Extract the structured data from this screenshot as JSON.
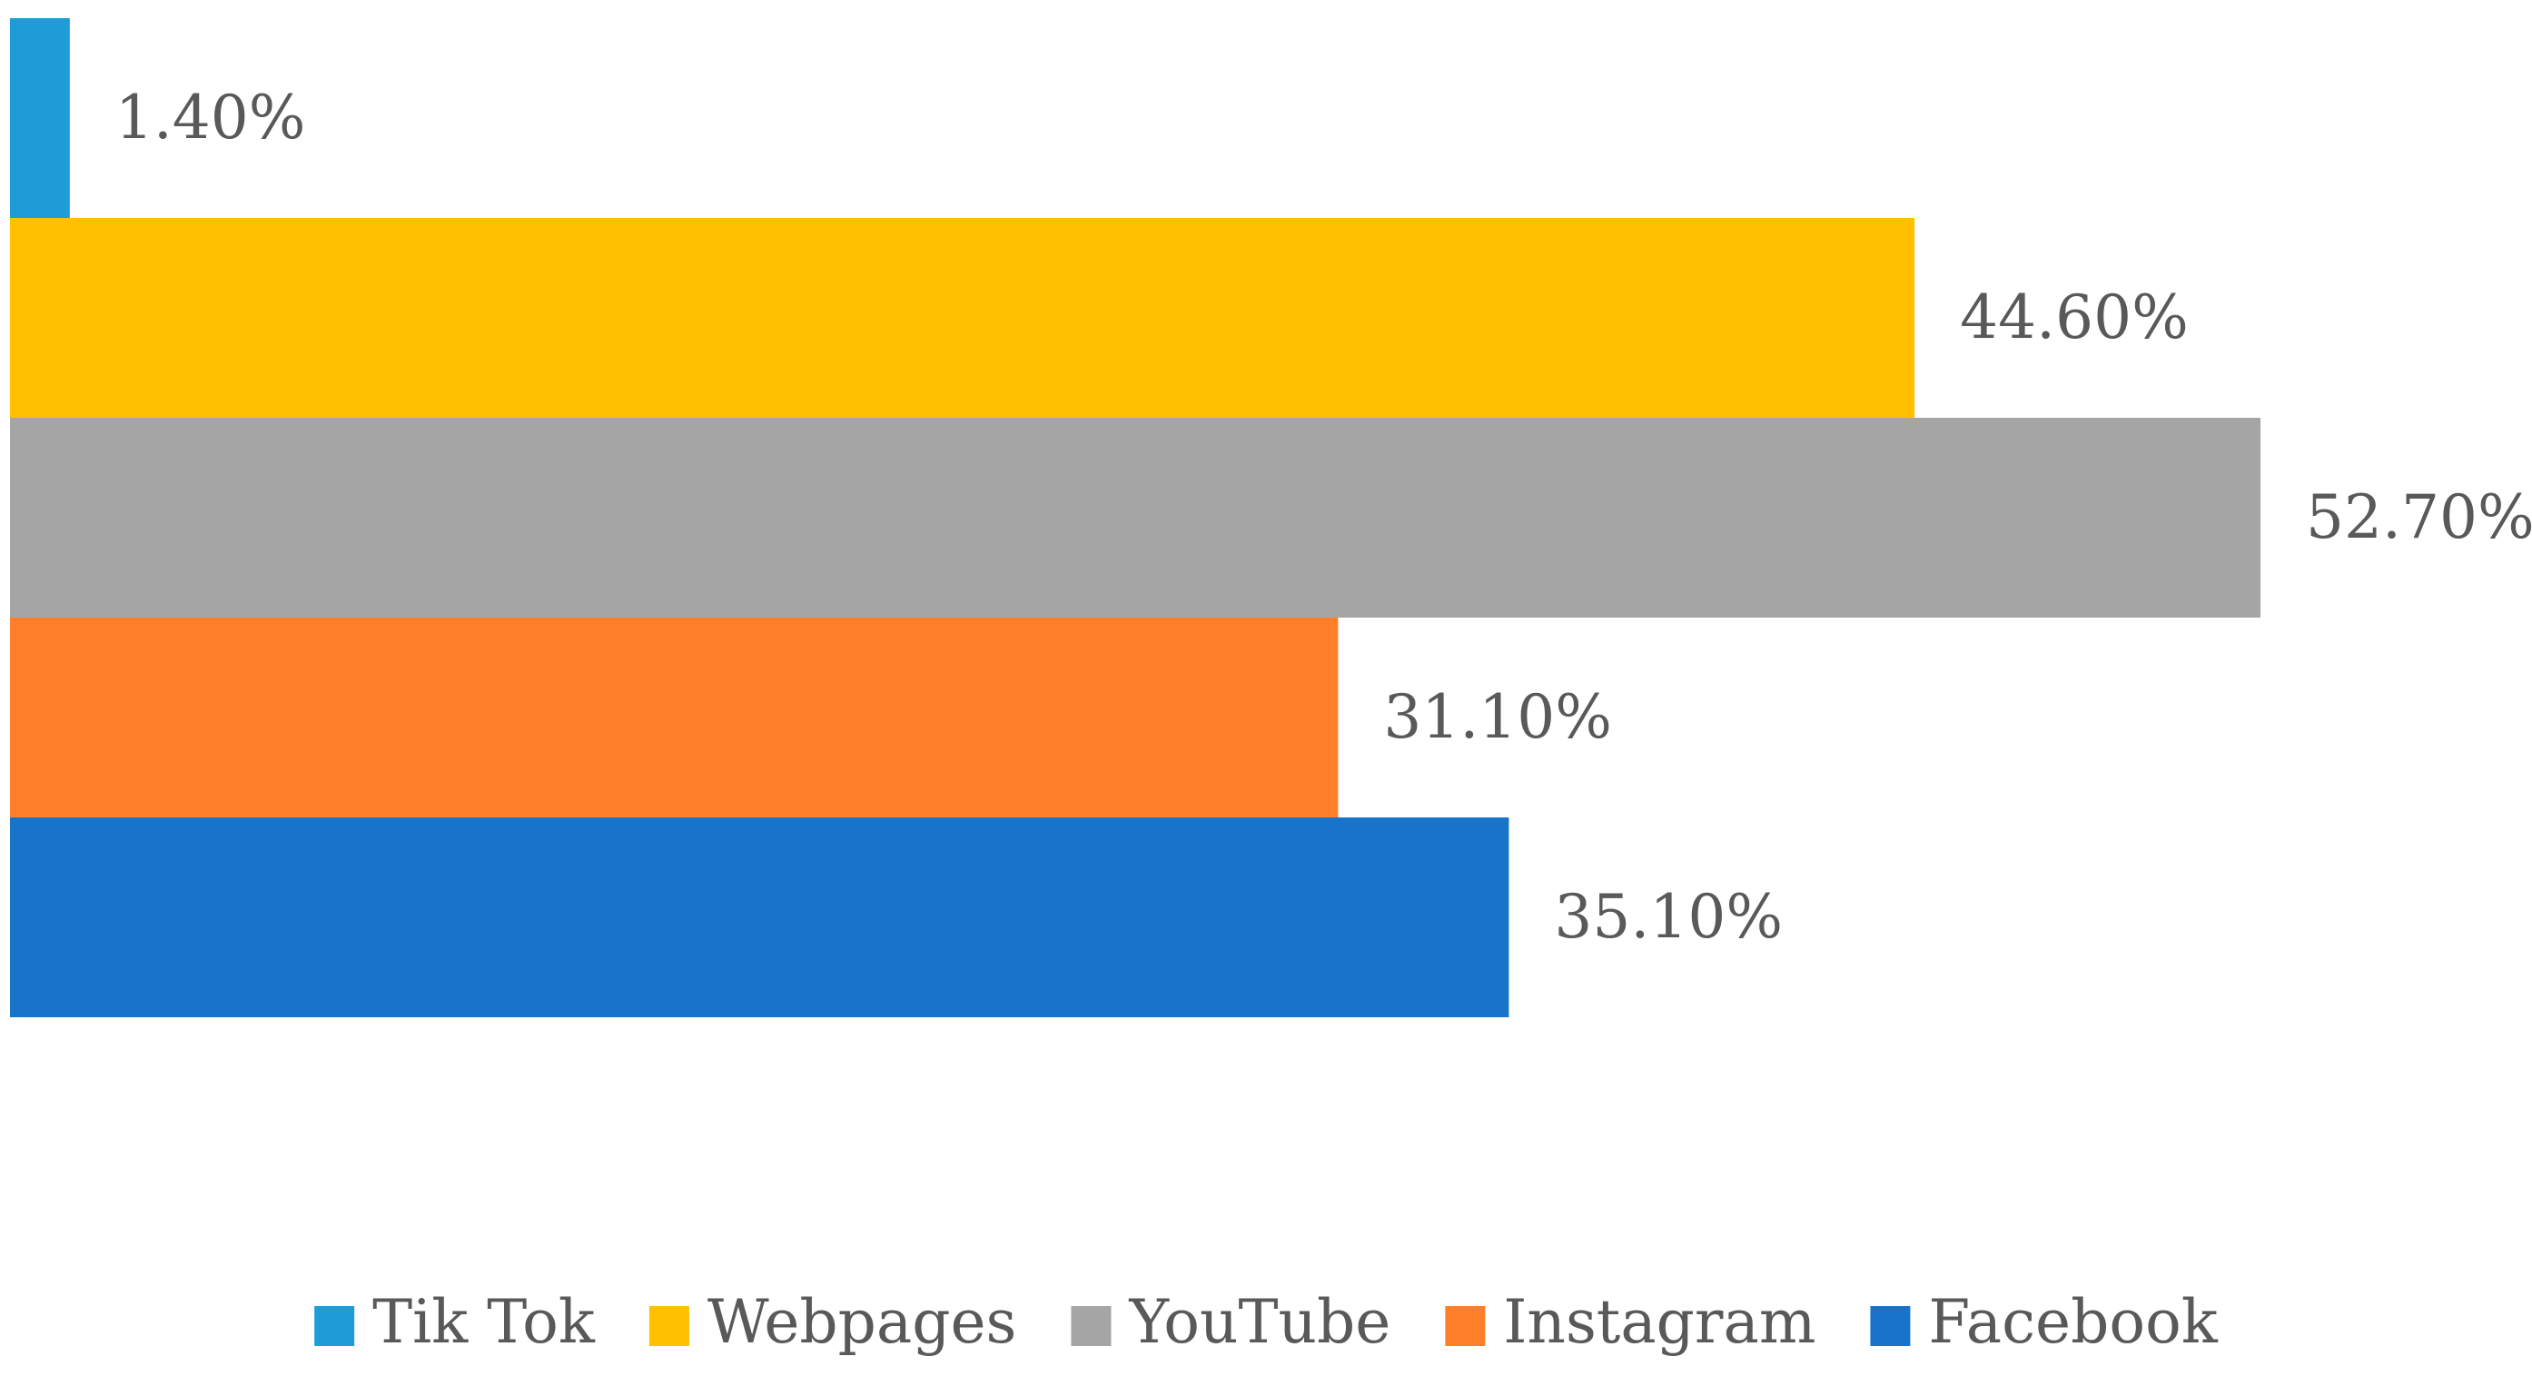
{
  "chart_data": {
    "type": "bar",
    "orientation": "horizontal",
    "title": "",
    "xlabel": "",
    "ylabel": "",
    "xlim": [
      0,
      100
    ],
    "grid": false,
    "legend_position": "bottom",
    "series": [
      {
        "name": "Tik Tok",
        "value": 1.4,
        "label": "1.40%",
        "color": "#1E9CD8"
      },
      {
        "name": "Webpages",
        "value": 44.6,
        "label": "44.60%",
        "color": "#FFC000"
      },
      {
        "name": "YouTube",
        "value": 52.7,
        "label": "52.70%",
        "color": "#A5A5A5"
      },
      {
        "name": "Instagram",
        "value": 31.1,
        "label": "31.10%",
        "color": "#FE7F27"
      },
      {
        "name": "Facebook",
        "value": 35.1,
        "label": "35.10%",
        "color": "#1874C8"
      }
    ]
  }
}
